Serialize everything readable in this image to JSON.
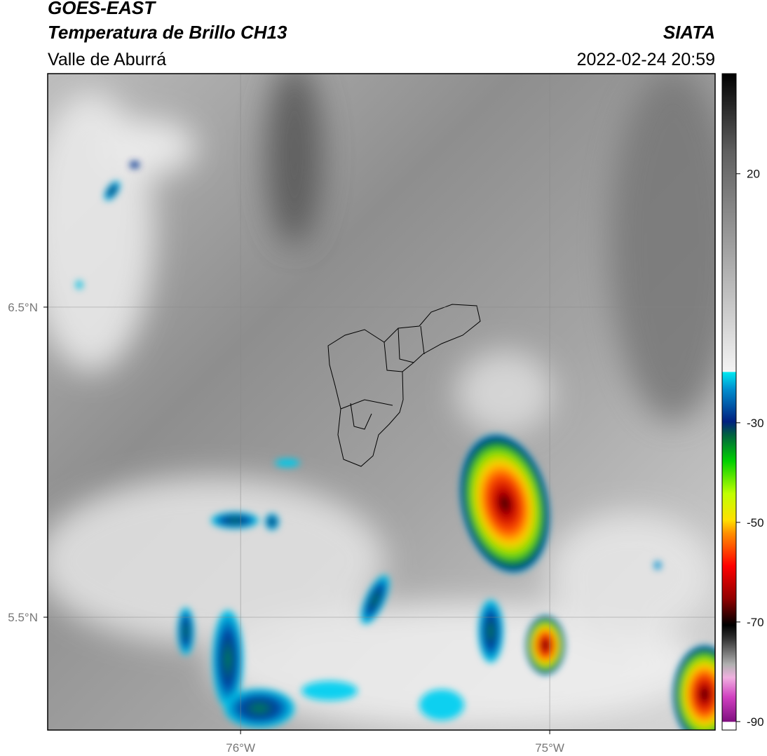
{
  "header": {
    "title": "GOES-EAST",
    "subtitle": "Temperatura de Brillo CH13",
    "region": "Valle de Aburrá",
    "source": "SIATA",
    "datetime": "2022-02-24 20:59"
  },
  "map": {
    "xlim": [
      -76.624,
      -74.465
    ],
    "ylim": [
      5.136,
      7.253
    ],
    "xticks": [
      {
        "value": -76,
        "label": "76°W"
      },
      {
        "value": -75,
        "label": "75°W"
      }
    ],
    "yticks": [
      {
        "value": 6.5,
        "label": "6.5°N"
      },
      {
        "value": 5.5,
        "label": "5.5°N"
      }
    ]
  },
  "colorbar": {
    "lim": [
      -91.7,
      40.1
    ],
    "ticks": [
      20,
      -30,
      -50,
      -70,
      -90
    ]
  }
}
